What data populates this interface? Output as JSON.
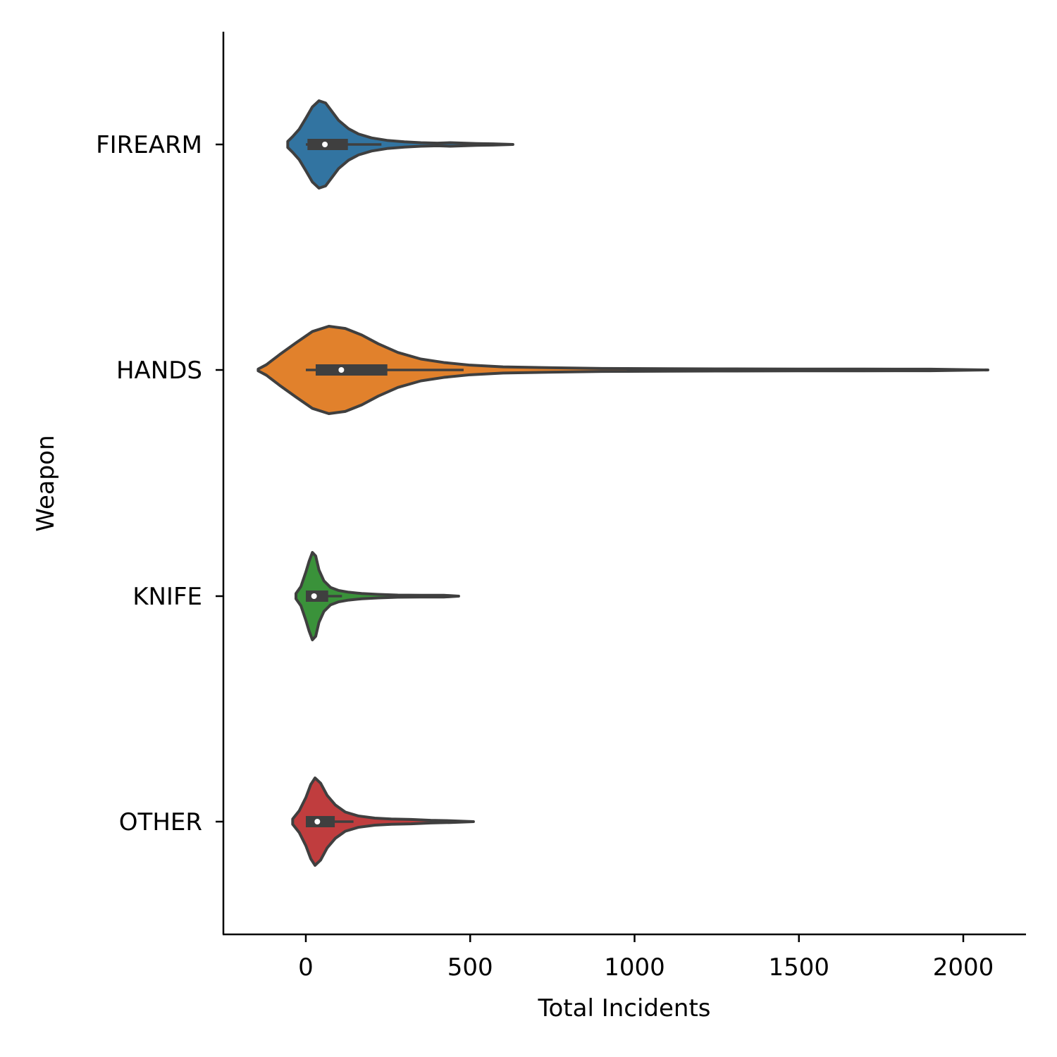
{
  "chart_data": {
    "type": "violin",
    "orientation": "horizontal",
    "xlabel": "Total Incidents",
    "ylabel": "Weapon",
    "xlim": [
      -250,
      2200
    ],
    "xticks": [
      0,
      500,
      1000,
      1500,
      2000
    ],
    "xtick_labels": [
      "0",
      "500",
      "1000",
      "1500",
      "2000"
    ],
    "categories": [
      "FIREARM",
      "HANDS",
      "KNIFE",
      "OTHER"
    ],
    "grid": false,
    "legend": null,
    "series": [
      {
        "category": "FIREARM",
        "color": "#3274a1",
        "min": -55,
        "max": 630,
        "q1": 5,
        "median": 58,
        "q3": 128,
        "whisker_low": 0,
        "whisker_high": 230,
        "density": [
          [
            -55,
            0.07
          ],
          [
            -40,
            0.18
          ],
          [
            -20,
            0.35
          ],
          [
            0,
            0.6
          ],
          [
            20,
            0.86
          ],
          [
            40,
            1.0
          ],
          [
            60,
            0.95
          ],
          [
            80,
            0.75
          ],
          [
            100,
            0.55
          ],
          [
            130,
            0.36
          ],
          [
            160,
            0.24
          ],
          [
            200,
            0.15
          ],
          [
            250,
            0.09
          ],
          [
            300,
            0.06
          ],
          [
            350,
            0.04
          ],
          [
            400,
            0.03
          ],
          [
            440,
            0.04
          ],
          [
            480,
            0.03
          ],
          [
            520,
            0.02
          ],
          [
            570,
            0.015
          ],
          [
            630,
            0.0
          ]
        ]
      },
      {
        "category": "HANDS",
        "color": "#e1812c",
        "min": -145,
        "max": 2075,
        "q1": 30,
        "median": 108,
        "q3": 248,
        "whisker_low": 0,
        "whisker_high": 480,
        "density": [
          [
            -145,
            0.02
          ],
          [
            -120,
            0.12
          ],
          [
            -80,
            0.35
          ],
          [
            -30,
            0.62
          ],
          [
            20,
            0.88
          ],
          [
            70,
            1.0
          ],
          [
            120,
            0.95
          ],
          [
            170,
            0.8
          ],
          [
            220,
            0.6
          ],
          [
            280,
            0.4
          ],
          [
            350,
            0.25
          ],
          [
            420,
            0.17
          ],
          [
            500,
            0.11
          ],
          [
            600,
            0.07
          ],
          [
            750,
            0.05
          ],
          [
            900,
            0.035
          ],
          [
            1100,
            0.028
          ],
          [
            1300,
            0.024
          ],
          [
            1500,
            0.02
          ],
          [
            1700,
            0.02
          ],
          [
            1900,
            0.018
          ],
          [
            2075,
            0.0
          ]
        ]
      },
      {
        "category": "KNIFE",
        "color": "#3a923a",
        "min": -30,
        "max": 465,
        "q1": 0,
        "median": 25,
        "q3": 68,
        "whisker_low": 0,
        "whisker_high": 110,
        "density": [
          [
            -30,
            0.06
          ],
          [
            -15,
            0.22
          ],
          [
            0,
            0.55
          ],
          [
            10,
            0.8
          ],
          [
            20,
            1.0
          ],
          [
            30,
            0.92
          ],
          [
            40,
            0.6
          ],
          [
            55,
            0.35
          ],
          [
            75,
            0.2
          ],
          [
            100,
            0.13
          ],
          [
            130,
            0.09
          ],
          [
            170,
            0.06
          ],
          [
            220,
            0.04
          ],
          [
            280,
            0.025
          ],
          [
            350,
            0.02
          ],
          [
            420,
            0.02
          ],
          [
            465,
            0.0
          ]
        ]
      },
      {
        "category": "OTHER",
        "color": "#c03d3e",
        "min": -40,
        "max": 510,
        "q1": 0,
        "median": 35,
        "q3": 88,
        "whisker_low": 0,
        "whisker_high": 145,
        "density": [
          [
            -40,
            0.06
          ],
          [
            -20,
            0.25
          ],
          [
            0,
            0.55
          ],
          [
            15,
            0.85
          ],
          [
            28,
            1.0
          ],
          [
            45,
            0.88
          ],
          [
            65,
            0.6
          ],
          [
            90,
            0.38
          ],
          [
            120,
            0.22
          ],
          [
            160,
            0.13
          ],
          [
            210,
            0.08
          ],
          [
            260,
            0.06
          ],
          [
            320,
            0.05
          ],
          [
            380,
            0.03
          ],
          [
            440,
            0.02
          ],
          [
            510,
            0.0
          ]
        ]
      }
    ]
  }
}
